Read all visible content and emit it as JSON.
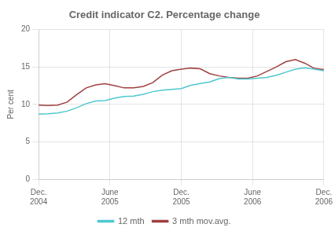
{
  "chart_data": {
    "type": "line",
    "title": "Credit indicator C2. Percentage change",
    "ylabel": "Per cent",
    "x": [
      0,
      1,
      2,
      3,
      4,
      5,
      6,
      7,
      8,
      9,
      10,
      11,
      12,
      13,
      14,
      15,
      16,
      17,
      18,
      19,
      20,
      21,
      22,
      23,
      24,
      25,
      26,
      27,
      28,
      29,
      30
    ],
    "xlim": [
      0,
      30
    ],
    "xticks": [
      {
        "value": 0,
        "label": "Dec.\n2004"
      },
      {
        "value": 7.5,
        "label": "June\n2005"
      },
      {
        "value": 15,
        "label": "Dec.\n2005"
      },
      {
        "value": 22.5,
        "label": "June\n2006"
      },
      {
        "value": 30,
        "label": "Dec.\n2006"
      }
    ],
    "ylim": [
      0,
      20
    ],
    "yticks": [
      0,
      5,
      10,
      15,
      20
    ],
    "grid": true,
    "legend": "bottom",
    "series": [
      {
        "name": "12 mth",
        "color": "#4ec8d0",
        "values": [
          8.7,
          8.75,
          8.85,
          9.1,
          9.55,
          10.1,
          10.45,
          10.5,
          10.85,
          11.05,
          11.1,
          11.35,
          11.7,
          11.9,
          12.0,
          12.1,
          12.55,
          12.8,
          13.0,
          13.45,
          13.6,
          13.4,
          13.4,
          13.5,
          13.6,
          13.9,
          14.3,
          14.7,
          14.9,
          14.7,
          14.5
        ]
      },
      {
        "name": "3 mth mov.avg.",
        "color": "#a04040",
        "values": [
          9.9,
          9.85,
          9.9,
          10.3,
          11.3,
          12.2,
          12.6,
          12.75,
          12.5,
          12.2,
          12.2,
          12.4,
          12.9,
          13.9,
          14.5,
          14.7,
          14.85,
          14.75,
          14.1,
          13.8,
          13.6,
          13.5,
          13.5,
          13.8,
          14.4,
          15.0,
          15.7,
          16.0,
          15.5,
          14.8,
          14.65
        ]
      }
    ]
  }
}
